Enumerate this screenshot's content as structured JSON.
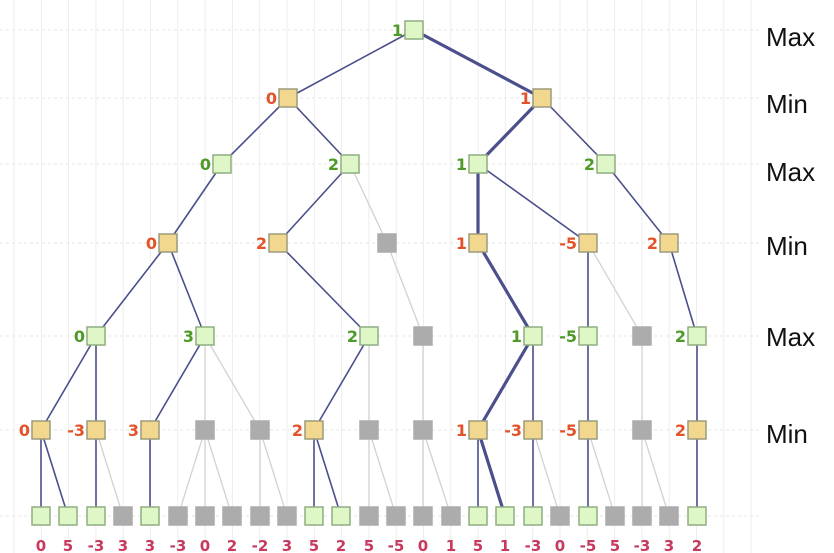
{
  "level_labels": [
    "Max",
    "Min",
    "Max",
    "Min",
    "Max",
    "Min"
  ],
  "colors": {
    "max_fill": "#dff7c6",
    "max_stroke": "#8fae80",
    "min_fill": "#f2d88f",
    "min_stroke": "#9c9a7c",
    "pruned_fill": "#acacac",
    "max_text": "#4e9a26",
    "min_text": "#e4522a",
    "leaf_text": "#c73a5e",
    "edge": "#4b4f8c",
    "edge_pruned": "#d2d2d2"
  },
  "nodes": [
    {
      "id": "r",
      "kind": "max",
      "value": "1"
    },
    {
      "id": "a",
      "kind": "min",
      "value": "0",
      "parent": "r"
    },
    {
      "id": "b",
      "kind": "min",
      "value": "1",
      "parent": "r",
      "best": true
    },
    {
      "id": "c",
      "kind": "max",
      "value": "0",
      "parent": "a"
    },
    {
      "id": "d",
      "kind": "max",
      "value": "2",
      "parent": "a"
    },
    {
      "id": "e",
      "kind": "max",
      "value": "1",
      "parent": "b",
      "best": true
    },
    {
      "id": "f",
      "kind": "max",
      "value": "2",
      "parent": "b"
    },
    {
      "id": "g",
      "kind": "min",
      "value": "0",
      "parent": "c"
    },
    {
      "id": "h",
      "kind": "min",
      "value": "2",
      "parent": "d"
    },
    {
      "id": "i",
      "kind": "min",
      "value": "",
      "parent": "d",
      "pruned": true
    },
    {
      "id": "j",
      "kind": "min",
      "value": "1",
      "parent": "e",
      "best": true
    },
    {
      "id": "k",
      "kind": "min",
      "value": "-5",
      "parent": "e"
    },
    {
      "id": "l",
      "kind": "min",
      "value": "2",
      "parent": "f"
    },
    {
      "id": "m",
      "kind": "max",
      "value": "0",
      "parent": "g"
    },
    {
      "id": "n",
      "kind": "max",
      "value": "3",
      "parent": "g"
    },
    {
      "id": "o",
      "kind": "max",
      "value": "2",
      "parent": "h"
    },
    {
      "id": "p",
      "kind": "max",
      "value": "",
      "parent": "i",
      "pruned": true
    },
    {
      "id": "q",
      "kind": "max",
      "value": "1",
      "parent": "j",
      "best": true
    },
    {
      "id": "s",
      "kind": "max",
      "value": "-5",
      "parent": "k"
    },
    {
      "id": "t",
      "kind": "max",
      "value": "",
      "parent": "k",
      "pruned": true
    },
    {
      "id": "u",
      "kind": "max",
      "value": "2",
      "parent": "l"
    },
    {
      "id": "v1",
      "kind": "min",
      "value": "0",
      "parent": "m"
    },
    {
      "id": "v2",
      "kind": "min",
      "value": "-3",
      "parent": "m"
    },
    {
      "id": "v3",
      "kind": "min",
      "value": "3",
      "parent": "n"
    },
    {
      "id": "v4",
      "kind": "min",
      "value": "",
      "parent": "n",
      "pruned": true
    },
    {
      "id": "v5",
      "kind": "min",
      "value": "",
      "parent": "n",
      "pruned": true
    },
    {
      "id": "v6",
      "kind": "min",
      "value": "2",
      "parent": "o"
    },
    {
      "id": "v7",
      "kind": "min",
      "value": "",
      "parent": "o",
      "pruned": true
    },
    {
      "id": "v8",
      "kind": "min",
      "value": "",
      "parent": "p",
      "pruned": true
    },
    {
      "id": "v9",
      "kind": "min",
      "value": "1",
      "parent": "q",
      "best": true
    },
    {
      "id": "v10",
      "kind": "min",
      "value": "-3",
      "parent": "q"
    },
    {
      "id": "v11",
      "kind": "min",
      "value": "-5",
      "parent": "s"
    },
    {
      "id": "v12",
      "kind": "min",
      "value": "",
      "parent": "t",
      "pruned": true
    },
    {
      "id": "v13",
      "kind": "min",
      "value": "2",
      "parent": "u"
    },
    {
      "id": "z0",
      "kind": "leaf",
      "value": "0",
      "parent": "v1"
    },
    {
      "id": "z1",
      "kind": "leaf",
      "value": "5",
      "parent": "v1"
    },
    {
      "id": "z2",
      "kind": "leaf",
      "value": "-3",
      "parent": "v2"
    },
    {
      "id": "z3",
      "kind": "leaf",
      "value": "3",
      "parent": "v2",
      "pruned": true
    },
    {
      "id": "z4",
      "kind": "leaf",
      "value": "3",
      "parent": "v3"
    },
    {
      "id": "z5",
      "kind": "leaf",
      "value": "-3",
      "parent": "v4",
      "pruned": true
    },
    {
      "id": "z6",
      "kind": "leaf",
      "value": "0",
      "parent": "v4",
      "pruned": true
    },
    {
      "id": "z7",
      "kind": "leaf",
      "value": "2",
      "parent": "v4",
      "pruned": true
    },
    {
      "id": "z8",
      "kind": "leaf",
      "value": "-2",
      "parent": "v5",
      "pruned": true
    },
    {
      "id": "z9",
      "kind": "leaf",
      "value": "3",
      "parent": "v5",
      "pruned": true
    },
    {
      "id": "z10",
      "kind": "leaf",
      "value": "5",
      "parent": "v6"
    },
    {
      "id": "z11",
      "kind": "leaf",
      "value": "2",
      "parent": "v6"
    },
    {
      "id": "z12",
      "kind": "leaf",
      "value": "5",
      "parent": "v7",
      "pruned": true
    },
    {
      "id": "z13",
      "kind": "leaf",
      "value": "-5",
      "parent": "v7",
      "pruned": true
    },
    {
      "id": "z14",
      "kind": "leaf",
      "value": "0",
      "parent": "v8",
      "pruned": true
    },
    {
      "id": "z15",
      "kind": "leaf",
      "value": "1",
      "parent": "v8",
      "pruned": true
    },
    {
      "id": "z16",
      "kind": "leaf",
      "value": "5",
      "parent": "v9"
    },
    {
      "id": "z17",
      "kind": "leaf",
      "value": "1",
      "parent": "v9",
      "best": true
    },
    {
      "id": "z18",
      "kind": "leaf",
      "value": "-3",
      "parent": "v10"
    },
    {
      "id": "z19",
      "kind": "leaf",
      "value": "0",
      "parent": "v10",
      "pruned": true
    },
    {
      "id": "z20",
      "kind": "leaf",
      "value": "-5",
      "parent": "v11"
    },
    {
      "id": "z21",
      "kind": "leaf",
      "value": "5",
      "parent": "v11",
      "pruned": true
    },
    {
      "id": "z22",
      "kind": "leaf",
      "value": "-3",
      "parent": "v12",
      "pruned": true
    },
    {
      "id": "z23",
      "kind": "leaf",
      "value": "3",
      "parent": "v12",
      "pruned": true
    },
    {
      "id": "z24",
      "kind": "leaf",
      "value": "2",
      "parent": "v13"
    }
  ]
}
